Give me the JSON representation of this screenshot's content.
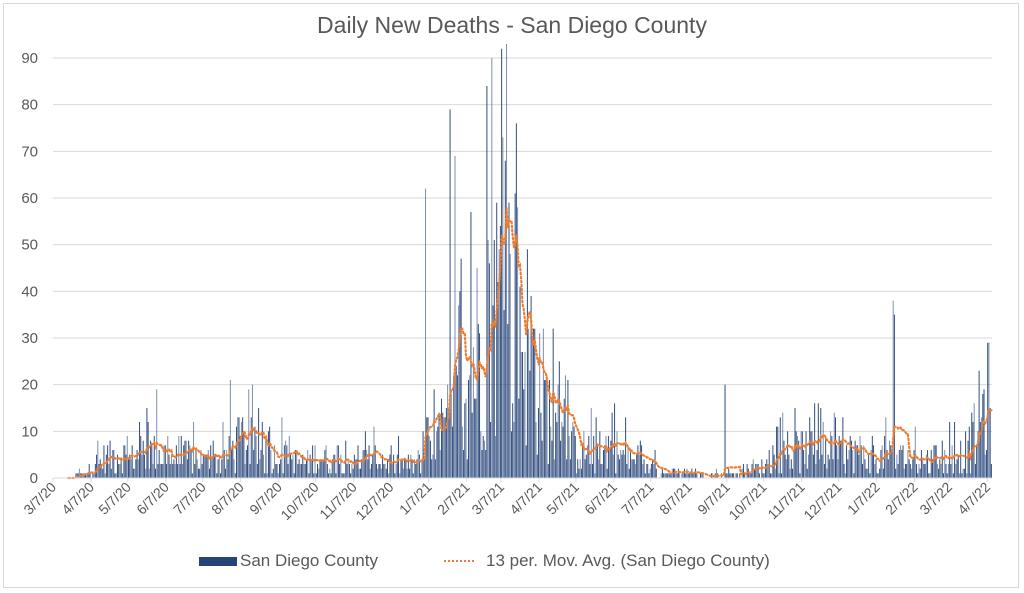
{
  "chart_data": {
    "type": "bar",
    "title": "Daily New Deaths - San Diego County",
    "xlabel": "",
    "ylabel": "",
    "ylim": [
      0,
      90
    ],
    "yticks": [
      0,
      10,
      20,
      30,
      40,
      50,
      60,
      70,
      80,
      90
    ],
    "grid": true,
    "legend_position": "bottom",
    "x_start_date": "3/7/20",
    "x_end_date": "4/10/22",
    "x_tick_labels": [
      "3/7/20",
      "4/7/20",
      "5/7/20",
      "6/7/20",
      "7/7/20",
      "8/7/20",
      "9/7/20",
      "10/7/20",
      "11/7/20",
      "12/7/20",
      "1/7/21",
      "2/7/21",
      "3/7/21",
      "4/7/21",
      "5/7/21",
      "6/7/21",
      "7/7/21",
      "8/7/21",
      "9/7/21",
      "10/7/21",
      "11/7/21",
      "12/7/21",
      "1/7/22",
      "2/7/22",
      "3/7/22",
      "4/7/22"
    ],
    "series": [
      {
        "name": "San Diego County",
        "kind": "bar",
        "color": "#264478",
        "weekly_typical_values": [
          0,
          0,
          0,
          1,
          1,
          3,
          4,
          5,
          5,
          4,
          5,
          6,
          5,
          5,
          4,
          4,
          5,
          4,
          3,
          4,
          4,
          6,
          8,
          7,
          5,
          4,
          5,
          4,
          4,
          3,
          4,
          5,
          4,
          3,
          4,
          3,
          4,
          4,
          4,
          3,
          3,
          3,
          3,
          4,
          6,
          8,
          12,
          15,
          20,
          25,
          32,
          36,
          38,
          37,
          35,
          30,
          25,
          18,
          12,
          9,
          7,
          6,
          6,
          5,
          6,
          7,
          5,
          4,
          3,
          2,
          2,
          1,
          1,
          1,
          1,
          1,
          0,
          1,
          1,
          1,
          1,
          2,
          2,
          3,
          4,
          5,
          5,
          6,
          7,
          6,
          5,
          5,
          5,
          6,
          5,
          4,
          4,
          5,
          4,
          4,
          4,
          4,
          4,
          4,
          4,
          5,
          5,
          8,
          14,
          17,
          14,
          11,
          9,
          7,
          7,
          6,
          4,
          4,
          4
        ],
        "notable_peaks": [
          {
            "date": "1/24/21",
            "value": 79
          },
          {
            "date": "1/28/21",
            "value": 69
          },
          {
            "date": "1/4/21",
            "value": 62
          },
          {
            "date": "2/10/21",
            "value": 57
          },
          {
            "date": "1/20/22",
            "value": 38
          },
          {
            "date": "1/21/22",
            "value": 35
          },
          {
            "date": "4/23/21",
            "value": 25
          },
          {
            "date": "7/29/20",
            "value": 21
          },
          {
            "date": "9/5/21",
            "value": 20
          },
          {
            "date": "5/30/20",
            "value": 19
          }
        ]
      },
      {
        "name": "13 per. Mov. Avg. (San Diego County)",
        "kind": "line",
        "style": "dotted",
        "color": "#ed7d31",
        "period": 13
      }
    ]
  },
  "legend": {
    "bar_label": "San Diego County",
    "line_label": "13 per. Mov. Avg. (San Diego County)"
  }
}
